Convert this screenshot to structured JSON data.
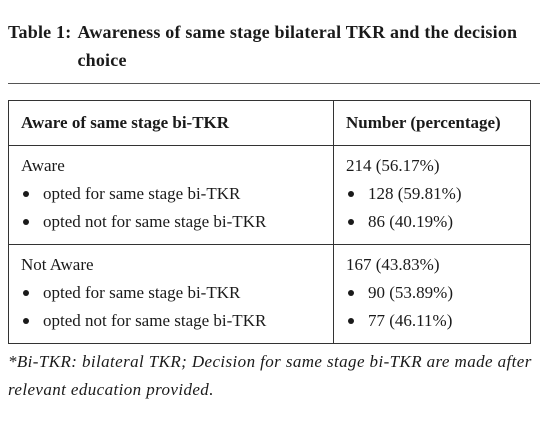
{
  "title": {
    "label": "Table 1:",
    "text": "Awareness of same stage bilateral TKR and the decision choice"
  },
  "table": {
    "header": [
      "Aware of same stage bi-TKR",
      "Number (percentage)"
    ],
    "groups": [
      {
        "label": "Aware",
        "value": "214 (56.17%)",
        "items": [
          {
            "label": "opted for same stage bi-TKR",
            "value": "128 (59.81%)"
          },
          {
            "label": "opted not for same stage bi-TKR",
            "value": "86 (40.19%)"
          }
        ]
      },
      {
        "label": "Not Aware",
        "value": "167 (43.83%)",
        "items": [
          {
            "label": "opted for same stage bi-TKR",
            "value": "90 (53.89%)"
          },
          {
            "label": "opted not for same stage bi-TKR",
            "value": "77 (46.11%)"
          }
        ]
      }
    ]
  },
  "footnote": "*Bi-TKR: bilateral TKR; Decision for same stage bi-TKR are made after relevant education provided."
}
